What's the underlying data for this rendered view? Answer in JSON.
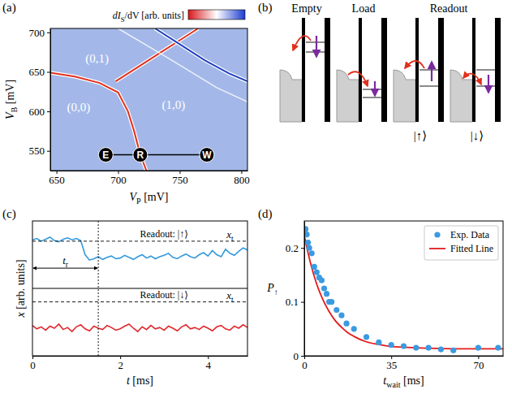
{
  "chart_data": [
    {
      "panel": "(a)",
      "type": "heatmap",
      "x_label": {
        "main": "V",
        "sub": "P",
        "unit": " [mV]"
      },
      "y_label": {
        "main": "V",
        "sub": "B",
        "unit": " [mV]"
      },
      "xlim": [
        645,
        805
      ],
      "ylim": [
        525,
        705
      ],
      "xticks": [
        650,
        700,
        750,
        800
      ],
      "yticks": [
        550,
        600,
        650,
        700
      ],
      "colorbar": {
        "label": {
          "main": "dI",
          "sub": "S",
          "unit": "/dV [arb. units]"
        },
        "colors": [
          "#d7191c",
          "#ffffff",
          "#1a3ccf"
        ]
      },
      "series": [
        {
          "color": "#e0301e",
          "x": [
            645,
            665,
            685,
            700,
            708,
            713,
            718,
            723
          ],
          "y": [
            649,
            644,
            636,
            624,
            600,
            575,
            545,
            525
          ]
        },
        {
          "color": "#e0301e",
          "x": [
            698,
            715,
            735,
            755,
            765
          ],
          "y": [
            638,
            655,
            675,
            695,
            705
          ]
        },
        {
          "color": "#1f3fbf",
          "x": [
            730,
            750,
            770,
            790,
            805
          ],
          "y": [
            705,
            685,
            665,
            648,
            638
          ]
        },
        {
          "color": "#ffffff",
          "x": [
            700,
            740,
            780,
            805
          ],
          "y": [
            705,
            668,
            630,
            612
          ]
        }
      ],
      "annotations": [
        {
          "text": "(0,1)",
          "x": 683,
          "y": 662
        },
        {
          "text": "(0,0)",
          "x": 668,
          "y": 600
        },
        {
          "text": "(1,0)",
          "x": 745,
          "y": 603
        }
      ],
      "points": [
        {
          "text": "E",
          "x": 690,
          "y": 545
        },
        {
          "text": "R",
          "x": 718,
          "y": 545
        },
        {
          "text": "W",
          "x": 772,
          "y": 545
        }
      ]
    },
    {
      "panel": "(c)",
      "type": "line",
      "x_label": {
        "main": "t",
        "unit": " [ms]"
      },
      "y_label": {
        "main": "x",
        "unit": " [arb. units]"
      },
      "xlim": [
        0,
        4.9
      ],
      "ylim": [
        0,
        2
      ],
      "xticks": [
        0,
        2,
        4
      ],
      "tick_labels": "x",
      "divider": 1,
      "x": [
        0,
        0.1,
        0.2,
        0.3,
        0.4,
        0.5,
        0.6,
        0.7,
        0.8,
        0.9,
        1,
        1.1,
        1.2,
        1.3,
        1.4,
        1.5,
        1.6,
        1.7,
        1.8,
        1.9,
        2,
        2.1,
        2.2,
        2.3,
        2.4,
        2.5,
        2.6,
        2.7,
        2.8,
        2.9,
        3,
        3.1,
        3.2,
        3.3,
        3.4,
        3.5,
        3.6,
        3.7,
        3.8,
        3.9,
        4,
        4.1,
        4.2,
        4.3,
        4.4,
        4.5,
        4.6,
        4.7,
        4.8,
        4.9
      ],
      "series": [
        {
          "color": "#3399dd",
          "values": [
            1.72,
            1.74,
            1.7,
            1.73,
            1.76,
            1.71,
            1.69,
            1.73,
            1.75,
            1.72,
            1.74,
            1.71,
            1.5,
            1.42,
            1.44,
            1.47,
            1.43,
            1.46,
            1.48,
            1.44,
            1.45,
            1.49,
            1.46,
            1.43,
            1.47,
            1.5,
            1.45,
            1.48,
            1.44,
            1.47,
            1.49,
            1.52,
            1.46,
            1.44,
            1.48,
            1.51,
            1.47,
            1.45,
            1.5,
            1.53,
            1.48,
            1.56,
            1.5,
            1.47,
            1.58,
            1.52,
            1.49,
            1.55,
            1.6,
            1.57
          ]
        },
        {
          "color": "#e0282d",
          "values": [
            0.45,
            0.4,
            0.43,
            0.38,
            0.44,
            0.41,
            0.47,
            0.39,
            0.42,
            0.36,
            0.43,
            0.46,
            0.4,
            0.37,
            0.44,
            0.41,
            0.39,
            0.45,
            0.42,
            0.38,
            0.4,
            0.44,
            0.47,
            0.41,
            0.36,
            0.43,
            0.39,
            0.45,
            0.4,
            0.42,
            0.38,
            0.44,
            0.41,
            0.37,
            0.43,
            0.46,
            0.4,
            0.42,
            0.39,
            0.44,
            0.41,
            0.37,
            0.43,
            0.45,
            0.4,
            0.38,
            0.44,
            0.41,
            0.46,
            0.42
          ]
        }
      ],
      "thresholds": [
        {
          "value": 1.7,
          "x": 4.5,
          "label": {
            "main": "x",
            "sub": "t"
          }
        },
        {
          "value": 0.8,
          "x": 4.5,
          "label": {
            "main": "x",
            "sub": "t"
          }
        }
      ],
      "annotations": [
        {
          "text": "Readout: |↑⟩",
          "x": 3.0,
          "y": 1.76
        },
        {
          "text": "Readout: |↓⟩",
          "x": 3.0,
          "y": 0.86
        }
      ],
      "t_r": {
        "label": {
          "main": "t",
          "sub": "r"
        },
        "x": [
          0,
          1.5
        ],
        "y": 1.3
      }
    },
    {
      "panel": "(d)",
      "type": "scatter",
      "x_label": {
        "main": "t",
        "sub": "wait",
        "unit": " [ms]"
      },
      "y_label": {
        "main": "P",
        "sub": "↑"
      },
      "xlim": [
        0,
        80
      ],
      "ylim": [
        0,
        0.25
      ],
      "xticks": [
        0,
        35,
        70
      ],
      "yticks": [
        0,
        0.1,
        0.2
      ],
      "legend": "upper right",
      "series": [
        {
          "name": "Exp. Data",
          "type": "scatter",
          "marker": "circle",
          "color": "#3b9ae1",
          "x": [
            0.5,
            1,
            1.5,
            2,
            3,
            4,
            5,
            6,
            7,
            8,
            9,
            10,
            11,
            13,
            15,
            17,
            20,
            25,
            30,
            35,
            40,
            45,
            50,
            55,
            60,
            70,
            78
          ],
          "y": [
            0.235,
            0.225,
            0.21,
            0.2,
            0.19,
            0.165,
            0.155,
            0.145,
            0.14,
            0.125,
            0.115,
            0.1,
            0.1,
            0.085,
            0.075,
            0.06,
            0.05,
            0.035,
            0.025,
            0.02,
            0.018,
            0.015,
            0.015,
            0.012,
            0.01,
            0.015,
            0.015
          ]
        },
        {
          "name": "Fitted Line",
          "type": "line",
          "color": "#e41a1c",
          "x": [
            0,
            2.5,
            5,
            7.5,
            10,
            12.5,
            15,
            17.5,
            20,
            25,
            30,
            35,
            40,
            50,
            60,
            70,
            80
          ],
          "y": [
            0.223,
            0.172,
            0.133,
            0.104,
            0.082,
            0.065,
            0.053,
            0.043,
            0.036,
            0.026,
            0.021,
            0.017,
            0.016,
            0.014,
            0.013,
            0.013,
            0.013
          ]
        }
      ]
    }
  ],
  "diagram": {
    "panel": "(b)",
    "steps": [
      {
        "title": "Empty"
      },
      {
        "title": "Load"
      },
      {
        "title": "Readout",
        "states": [
          "|↑⟩",
          "|↓⟩"
        ]
      }
    ]
  }
}
